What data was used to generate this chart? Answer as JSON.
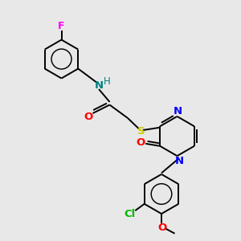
{
  "bg_color": "#e8e8e8",
  "bond_color": "#000000",
  "atom_colors": {
    "F": "#ff00ff",
    "N_amide": "#008080",
    "H_amide": "#008080",
    "O1": "#ff0000",
    "S": "#cccc00",
    "N_pyr1": "#0000ff",
    "N_pyr2": "#0000ff",
    "O2": "#ff0000",
    "Cl": "#00bb00",
    "O_ome": "#ff0000"
  },
  "figsize": [
    3.0,
    3.0
  ],
  "dpi": 100,
  "xlim": [
    0,
    10
  ],
  "ylim": [
    0,
    10
  ]
}
